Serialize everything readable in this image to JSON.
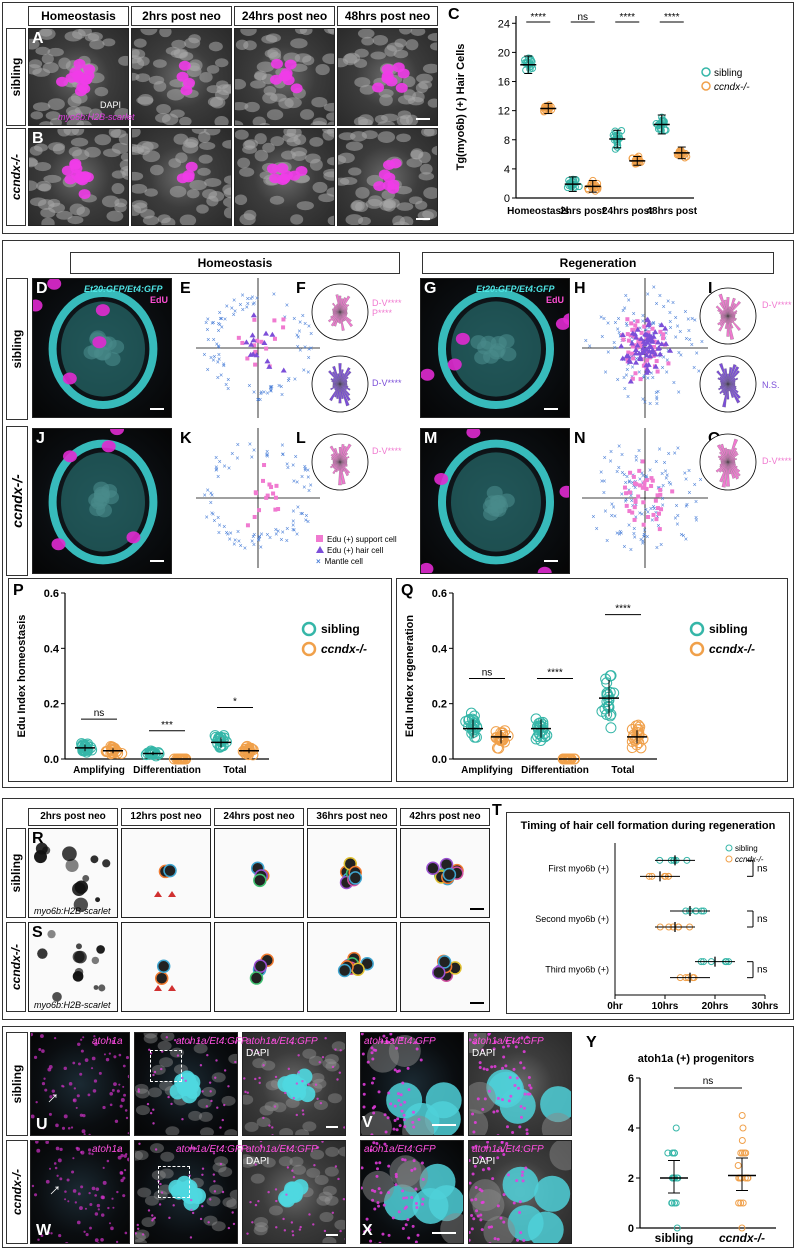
{
  "panel_a_b": {
    "columns": [
      "Homeostasis",
      "2hrs post neo",
      "24hrs post neo",
      "48hrs post neo"
    ],
    "rows": [
      "sibling",
      "ccndx-/-"
    ],
    "labels": {
      "a": "A",
      "b": "B",
      "c": "C"
    },
    "stain_dapi": "DAPI",
    "stain_reporter": "myo6b:H2B-scarlet"
  },
  "chart_c": {
    "chart_data": {
      "type": "scatter",
      "title": "",
      "ylabel": "Tg(myo6b) (+) Hair Cells",
      "categories": [
        "Homeostasis",
        "2hrs post",
        "24hrs post",
        "48hrs post"
      ],
      "yticks": [
        "0",
        "4",
        "8",
        "12",
        "16",
        "20",
        "24"
      ],
      "ylim": [
        0,
        25
      ],
      "series": [
        {
          "name": "sibling",
          "color": "#35b6a8",
          "means": [
            18.3,
            1.9,
            8.1,
            10.1
          ],
          "sd": [
            1.2,
            1.0,
            1.2,
            1.3
          ]
        },
        {
          "name": "ccndx-/-",
          "color": "#f0a04a",
          "means": [
            12.3,
            1.6,
            5.1,
            6.2
          ],
          "sd": [
            0.7,
            0.8,
            0.6,
            0.8
          ]
        }
      ],
      "significance": [
        "****",
        "ns",
        "****",
        "****"
      ]
    }
  },
  "section2": {
    "homeostasis_title": "Homeostasis",
    "regeneration_title": "Regeneration",
    "rows": [
      "sibling",
      "ccndx-/-"
    ],
    "labels": {
      "d": "D",
      "e": "E",
      "f": "F",
      "g": "G",
      "h": "H",
      "i": "I",
      "j": "J",
      "k": "K",
      "l": "L",
      "m": "M",
      "n": "N",
      "o": "O"
    },
    "stain_gfp": "Et20:GFP/Et4:GFP",
    "stain_edu": "EdU",
    "rose_f_top": [
      "D-V****",
      "P****"
    ],
    "rose_f_bot": "D-V****",
    "rose_i_top": "D-V****",
    "rose_i_bot": "N.S.",
    "rose_l": "D-V****",
    "rose_o": "D-V****",
    "legend": [
      "Edu (+) support cell",
      "Edu (+) hair cell",
      "Mantle cell"
    ]
  },
  "chart_p": {
    "label": "P",
    "chart_data": {
      "type": "scatter",
      "ylabel": "Edu Index homeostasis",
      "categories": [
        "Amplifying",
        "Differentiation",
        "Total"
      ],
      "yticks": [
        "0.0",
        "0.2",
        "0.4",
        "0.6"
      ],
      "ylim": [
        0,
        0.6
      ],
      "series": [
        {
          "name": "sibling",
          "color": "#35b6a8",
          "means": [
            0.04,
            0.02,
            0.06
          ]
        },
        {
          "name": "ccndx-/-",
          "color": "#f0a04a",
          "means": [
            0.03,
            0.0,
            0.03
          ]
        }
      ],
      "significance": [
        "ns",
        "***",
        "*"
      ]
    }
  },
  "chart_q": {
    "label": "Q",
    "chart_data": {
      "type": "scatter",
      "ylabel": "Edu Index regeneration",
      "categories": [
        "Amplifying",
        "Differentiation",
        "Total"
      ],
      "yticks": [
        "0.0",
        "0.2",
        "0.4",
        "0.6"
      ],
      "ylim": [
        0,
        0.6
      ],
      "series": [
        {
          "name": "sibling",
          "color": "#35b6a8",
          "means": [
            0.11,
            0.11,
            0.22
          ]
        },
        {
          "name": "ccndx-/-",
          "color": "#f0a04a",
          "means": [
            0.08,
            0.0,
            0.08
          ]
        }
      ],
      "significance": [
        "ns",
        "****",
        "****"
      ]
    }
  },
  "section3": {
    "labels": {
      "r": "R",
      "s": "S",
      "t": "T"
    },
    "columns": [
      "2hrs post neo",
      "12hrs post neo",
      "24hrs post neo",
      "36hrs post neo",
      "42hrs post neo"
    ],
    "rows": [
      "sibling",
      "ccndx-/-"
    ],
    "stain": "myo6b:H2B-scarlet"
  },
  "chart_t": {
    "chart_data": {
      "type": "scatter",
      "title": "Timing of hair cell formation during regeneration",
      "categories": [
        "First myo6b (+)",
        "Second myo6b (+)",
        "Third myo6b (+)"
      ],
      "xticks": [
        "0hr",
        "10hrs",
        "20hrs",
        "30hrs"
      ],
      "xlim": [
        0,
        30
      ],
      "series": [
        {
          "name": "sibling",
          "color": "#35b6a8",
          "means": [
            12,
            15,
            20
          ]
        },
        {
          "name": "ccndx-/-",
          "color": "#f0a04a",
          "means": [
            9,
            12,
            15
          ]
        }
      ],
      "significance": [
        "ns",
        "ns",
        "ns"
      ]
    }
  },
  "section4": {
    "labels": {
      "u": "U",
      "v": "V",
      "w": "W",
      "x": "X",
      "y": "Y"
    },
    "rows": [
      "sibling",
      "ccndx-/-"
    ],
    "atoh": "atoh1a",
    "atoh_gfp": "atoh1a/Et4:GFP",
    "dapi": "DAPI"
  },
  "chart_y": {
    "chart_data": {
      "type": "scatter",
      "title": "atoh1a (+) progenitors",
      "categories": [
        "sibling",
        "ccndx-/-"
      ],
      "yticks": [
        "0",
        "2",
        "4",
        "6"
      ],
      "ylim": [
        0,
        6
      ],
      "series": [
        {
          "name": "sibling",
          "color": "#35b6a8",
          "mean": 2.0
        },
        {
          "name": "ccndx-/-",
          "color": "#f0a04a",
          "mean": 2.1
        }
      ],
      "significance": "ns"
    }
  }
}
